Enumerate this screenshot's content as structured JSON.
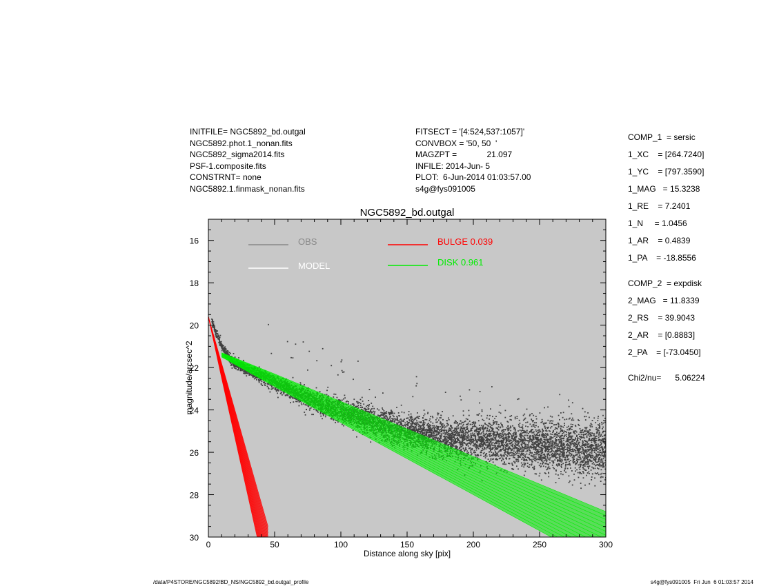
{
  "header": {
    "left": [
      "INITFILE= NGC5892_bd.outgal",
      "NGC5892.phot.1_nonan.fits",
      "NGC5892_sigma2014.fits",
      "PSF-1.composite.fits",
      "CONSTRNT= none",
      "NGC5892.1.finmask_nonan.fits"
    ],
    "middle": [
      "FITSECT = '[4:524,537:1057]'",
      "CONVBOX = '50, 50  '",
      "MAGZPT =             21.097",
      "INFILE: 2014-Jun- 5",
      "PLOT:  6-Jun-2014 01:03:57.00",
      "s4g@fys091005"
    ]
  },
  "params": [
    "COMP_1  = sersic",
    "1_XC    = [264.7240]",
    "1_YC    = [797.3590]",
    "1_MAG   = 15.3238",
    "1_RE    = 7.2401",
    "1_N     = 1.0456",
    "1_AR    = 0.4839",
    "1_PA    = -18.8556",
    "COMP_2  = expdisk",
    "2_MAG   = 11.8339",
    "2_RS    = 39.9043",
    "2_AR    = [0.8883]",
    "2_PA    = [-73.0450]",
    "Chi2/nu=      5.06224"
  ],
  "footer": {
    "left": "/data/P4STORE/NGC5892/BD_NS/NGC5892_bd.outgal_profile",
    "right": "s4g@fys091005  Fri Jun  6 01:03:57 2014"
  },
  "chart_data": {
    "type": "scatter",
    "title": "NGC5892_bd.outgal",
    "xlabel": "Distance along sky [pix]",
    "ylabel": "magnitude/arcsec^2",
    "xlim": [
      0,
      300
    ],
    "ylim": [
      30,
      15
    ],
    "y_inverted": true,
    "x_ticks": [
      0,
      50,
      100,
      150,
      200,
      250,
      300
    ],
    "y_ticks": [
      16,
      18,
      20,
      22,
      24,
      26,
      28,
      30
    ],
    "background_color": "#c8c8c8",
    "grid": false,
    "legend": [
      {
        "label": "OBS",
        "color": "#888888"
      },
      {
        "label": "MODEL",
        "color": "#ffffff"
      },
      {
        "label": "BULGE  0.039",
        "color": "#ff0000"
      },
      {
        "label": "DISK  0.961",
        "color": "#00ee00"
      }
    ],
    "series": [
      {
        "name": "OBS",
        "color": "#404040",
        "x": [
          2,
          5,
          10,
          15,
          20,
          30,
          40,
          50,
          60,
          70,
          80,
          100,
          120,
          140,
          160,
          180,
          200,
          220,
          240,
          260,
          280,
          300
        ],
        "y": [
          19.7,
          20.3,
          21.0,
          21.5,
          21.8,
          22.1,
          22.4,
          22.7,
          23.0,
          23.3,
          23.6,
          24.0,
          24.4,
          24.8,
          25.1,
          25.3,
          25.4,
          25.5,
          25.6,
          25.7,
          25.8,
          25.8
        ]
      },
      {
        "name": "BULGE  0.039",
        "color": "#ff0000",
        "x": [
          0,
          10,
          20,
          30,
          40,
          45
        ],
        "y_upper": [
          19.6,
          22.5,
          25.3,
          28.1,
          30.9,
          32.3
        ],
        "y_lower": [
          19.6,
          21.8,
          24.0,
          26.2,
          28.4,
          29.5
        ]
      },
      {
        "name": "DISK  0.961",
        "color": "#00ee00",
        "x": [
          10,
          50,
          100,
          150,
          200,
          250,
          300
        ],
        "y_upper": [
          21.3,
          22.3,
          23.6,
          24.9,
          26.2,
          27.5,
          28.8
        ],
        "y_lower": [
          21.5,
          22.9,
          24.6,
          26.3,
          28.0,
          29.7,
          31.4
        ]
      }
    ]
  }
}
